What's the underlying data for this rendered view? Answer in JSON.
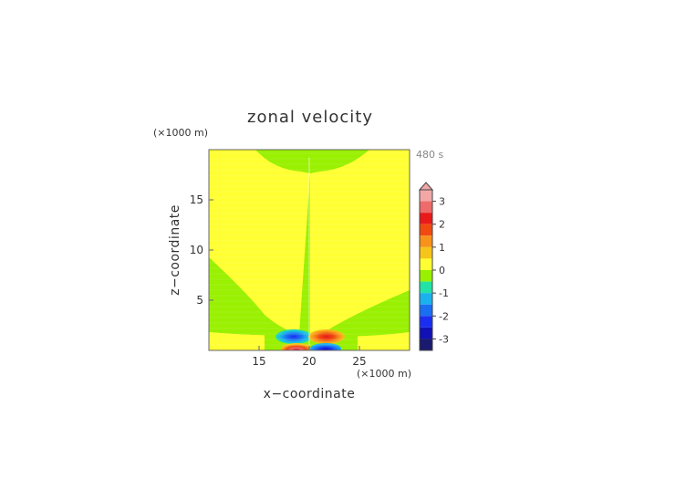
{
  "chart_data": {
    "type": "heatmap",
    "title": "zonal velocity",
    "xlabel": "x−coordinate",
    "ylabel": "z−coordinate",
    "x_unit": "(×1000 m)",
    "y_unit": "(×1000 m)",
    "time_label": "480 s",
    "xlim": [
      10,
      30
    ],
    "ylim": [
      0,
      20
    ],
    "x_ticks": [
      15,
      20,
      25
    ],
    "y_ticks": [
      5,
      10,
      15
    ],
    "colorbar": {
      "range": [
        -3.5,
        3.5
      ],
      "ticks": [
        3,
        2,
        1,
        0,
        -1,
        -2,
        -3
      ],
      "extend": "max",
      "levels": [
        {
          "value": 3.25,
          "color": "#f2a7a7"
        },
        {
          "value": 2.75,
          "color": "#ee6b6b"
        },
        {
          "value": 2.25,
          "color": "#e81a1a"
        },
        {
          "value": 1.75,
          "color": "#f04a10"
        },
        {
          "value": 1.25,
          "color": "#f7921a"
        },
        {
          "value": 0.75,
          "color": "#f7c51a"
        },
        {
          "value": 0.25,
          "color": "#ffff33"
        },
        {
          "value": -0.25,
          "color": "#99f000"
        },
        {
          "value": -0.75,
          "color": "#22e3a5"
        },
        {
          "value": -1.25,
          "color": "#1ab2ee"
        },
        {
          "value": -1.75,
          "color": "#1a6ef2"
        },
        {
          "value": -2.25,
          "color": "#1a2ef2"
        },
        {
          "value": -2.75,
          "color": "#1010b4"
        },
        {
          "value": -3.25,
          "color": "#1a1a6e"
        }
      ]
    },
    "regions": [
      {
        "name": "negative-lobe-upper-left",
        "x": 18.0,
        "z": 1.1,
        "value": -1.6
      },
      {
        "name": "positive-lobe-upper-right",
        "x": 21.5,
        "z": 1.1,
        "value": 1.6
      },
      {
        "name": "positive-lobe-lower-left",
        "x": 18.3,
        "z": 0.15,
        "value": 2.3
      },
      {
        "name": "negative-lobe-lower-right",
        "x": 21.7,
        "z": 0.15,
        "value": -2.3
      }
    ]
  }
}
